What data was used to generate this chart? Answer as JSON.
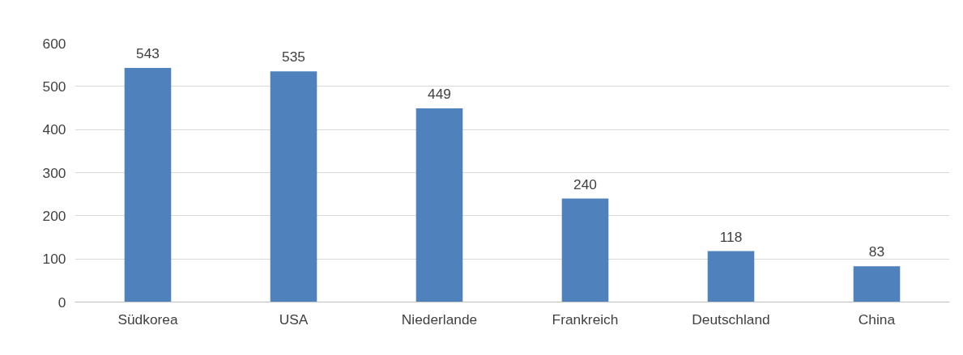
{
  "chart_data": {
    "type": "bar",
    "categories": [
      "Südkorea",
      "USA",
      "Niederlande",
      "Frankreich",
      "Deutschland",
      "China"
    ],
    "values": [
      543,
      535,
      449,
      240,
      118,
      83
    ],
    "color": "#4f81bd",
    "ylim": [
      0,
      600
    ],
    "yticks": [
      0,
      100,
      200,
      300,
      400,
      500,
      600
    ],
    "grid": "y",
    "data_labels": true
  }
}
